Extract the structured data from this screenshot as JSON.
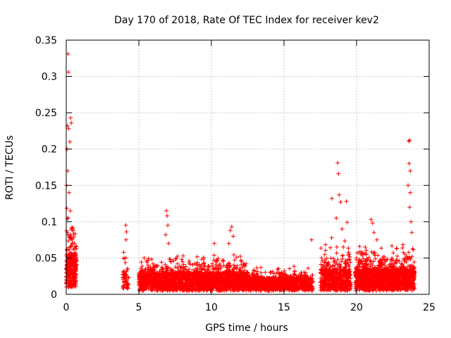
{
  "chart_data": {
    "type": "scatter",
    "title": "Day 170 of 2018, Rate Of TEC Index for receiver kev2",
    "xlabel": "GPS time / hours",
    "ylabel": "ROTI / TECUs",
    "xlim": [
      0,
      25
    ],
    "ylim": [
      0,
      0.35
    ],
    "xticks": [
      0,
      5,
      10,
      15,
      20,
      25
    ],
    "yticks": [
      0,
      0.05,
      0.1,
      0.15,
      0.2,
      0.25,
      0.3,
      0.35
    ],
    "xtick_labels": [
      "0",
      "5",
      "10",
      "15",
      "20",
      "25"
    ],
    "ytick_labels": [
      "0",
      "0.05",
      "0.1",
      "0.15",
      "0.2",
      "0.25",
      "0.3",
      "0.35"
    ],
    "grid": true,
    "marker": "+",
    "color": "#ff0000",
    "segments": [
      {
        "x0": 0.0,
        "x1": 0.7,
        "ymin": 0.01,
        "ybase": 0.045,
        "yspread": 0.08,
        "n": 320
      },
      {
        "x0": 3.9,
        "x1": 4.3,
        "ymin": 0.008,
        "ybase": 0.02,
        "yspread": 0.04,
        "n": 50
      },
      {
        "x0": 5.0,
        "x1": 10.0,
        "ymin": 0.005,
        "ybase": 0.025,
        "yspread": 0.03,
        "n": 1500
      },
      {
        "x0": 10.0,
        "x1": 12.5,
        "ymin": 0.005,
        "ybase": 0.025,
        "yspread": 0.035,
        "n": 700
      },
      {
        "x0": 12.5,
        "x1": 17.0,
        "ymin": 0.005,
        "ybase": 0.018,
        "yspread": 0.02,
        "n": 1000
      },
      {
        "x0": 17.5,
        "x1": 19.6,
        "ymin": 0.005,
        "ybase": 0.03,
        "yspread": 0.05,
        "n": 550
      },
      {
        "x0": 19.9,
        "x1": 24.0,
        "ymin": 0.005,
        "ybase": 0.03,
        "yspread": 0.045,
        "n": 1400
      }
    ],
    "peaks": [
      {
        "x": 0.12,
        "y": 0.331
      },
      {
        "x": 0.15,
        "y": 0.306
      },
      {
        "x": 0.08,
        "y": 0.232
      },
      {
        "x": 0.17,
        "y": 0.228
      },
      {
        "x": 0.3,
        "y": 0.243
      },
      {
        "x": 0.35,
        "y": 0.236
      },
      {
        "x": 0.05,
        "y": 0.2
      },
      {
        "x": 0.25,
        "y": 0.21
      },
      {
        "x": 0.1,
        "y": 0.17
      },
      {
        "x": 0.02,
        "y": 0.15
      },
      {
        "x": 0.2,
        "y": 0.14
      },
      {
        "x": 0.28,
        "y": 0.115
      },
      {
        "x": 0.4,
        "y": 0.092
      },
      {
        "x": 0.45,
        "y": 0.07
      },
      {
        "x": 4.1,
        "y": 0.095
      },
      {
        "x": 4.15,
        "y": 0.086
      },
      {
        "x": 4.12,
        "y": 0.075
      },
      {
        "x": 6.9,
        "y": 0.115
      },
      {
        "x": 6.95,
        "y": 0.108
      },
      {
        "x": 7.0,
        "y": 0.095
      },
      {
        "x": 6.85,
        "y": 0.082
      },
      {
        "x": 7.05,
        "y": 0.07
      },
      {
        "x": 11.4,
        "y": 0.093
      },
      {
        "x": 11.3,
        "y": 0.088
      },
      {
        "x": 11.5,
        "y": 0.08
      },
      {
        "x": 11.2,
        "y": 0.07
      },
      {
        "x": 10.2,
        "y": 0.07
      },
      {
        "x": 16.9,
        "y": 0.075
      },
      {
        "x": 18.7,
        "y": 0.181
      },
      {
        "x": 18.75,
        "y": 0.166
      },
      {
        "x": 18.3,
        "y": 0.132
      },
      {
        "x": 18.8,
        "y": 0.137
      },
      {
        "x": 18.9,
        "y": 0.127
      },
      {
        "x": 19.3,
        "y": 0.128
      },
      {
        "x": 19.35,
        "y": 0.099
      },
      {
        "x": 18.6,
        "y": 0.105
      },
      {
        "x": 19.0,
        "y": 0.09
      },
      {
        "x": 21.0,
        "y": 0.103
      },
      {
        "x": 21.1,
        "y": 0.098
      },
      {
        "x": 21.2,
        "y": 0.085
      },
      {
        "x": 21.4,
        "y": 0.075
      },
      {
        "x": 20.6,
        "y": 0.065
      },
      {
        "x": 23.6,
        "y": 0.211
      },
      {
        "x": 23.65,
        "y": 0.212
      },
      {
        "x": 23.62,
        "y": 0.18
      },
      {
        "x": 23.7,
        "y": 0.17
      },
      {
        "x": 23.55,
        "y": 0.15
      },
      {
        "x": 23.7,
        "y": 0.14
      },
      {
        "x": 23.65,
        "y": 0.12
      },
      {
        "x": 23.75,
        "y": 0.1
      },
      {
        "x": 23.8,
        "y": 0.085
      }
    ]
  }
}
